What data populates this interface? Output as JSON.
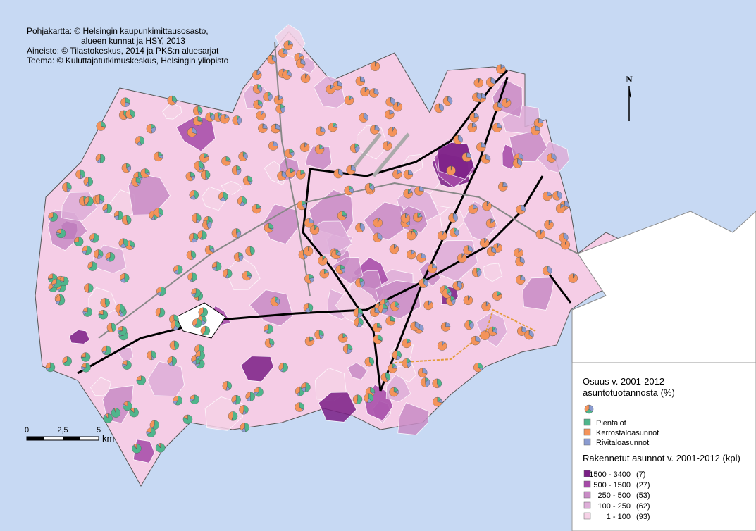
{
  "credits": [
    "Pohjakartta: © Helsingin kaupunkimittausosasto,",
    "alueen kunnat ja HSY, 2013",
    "Aineisto: © Tilastokeskus, 2014 ja PKS:n aluesarjat",
    "Teema: © Kuluttajatutkimuskeskus, Helsingin yliopisto"
  ],
  "north": "N",
  "scale": {
    "ticks": [
      "0",
      "2,5",
      "5"
    ],
    "unit": "km"
  },
  "legend": {
    "share_title": [
      "Osuus v. 2001-2012",
      "asuntotuotannosta (%)"
    ],
    "share_items": [
      {
        "label": "Pientalot",
        "color": "#4fb58c"
      },
      {
        "label": "Kerrostaloasunnot",
        "color": "#f4935a"
      },
      {
        "label": "Rivitaloasunnot",
        "color": "#8a9bd0"
      }
    ],
    "count_title": "Rakennetut asunnot v. 2001-2012 (kpl)",
    "count_items": [
      {
        "range": "1500 - 3400",
        "count": "(7)",
        "color": "#7b1f86"
      },
      {
        "range": "500 - 1500",
        "count": "(27)",
        "color": "#a64aa8"
      },
      {
        "range": "250 - 500",
        "count": "(53)",
        "color": "#c98cc6"
      },
      {
        "range": "100 - 250",
        "count": "(62)",
        "color": "#deaed9"
      },
      {
        "range": "1 - 100",
        "count": "(93)",
        "color": "#f6d2e7"
      }
    ]
  }
}
